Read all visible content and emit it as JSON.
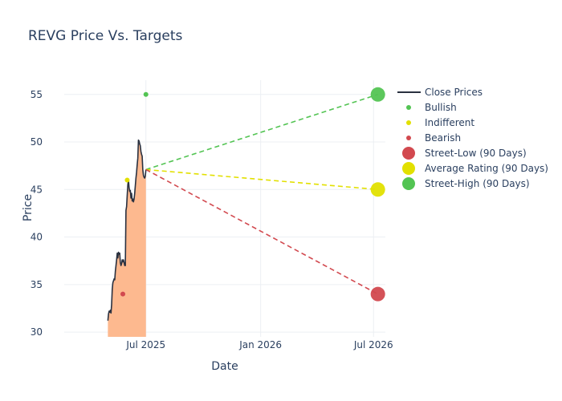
{
  "chart_data": {
    "type": "line",
    "title": "REVG Price Vs. Targets",
    "xlabel": "Date",
    "ylabel": "Price",
    "grid": true,
    "legend_position": "right",
    "xlim": [
      "2025-02-20",
      "2026-07-20"
    ],
    "ylim": [
      29.5,
      56.5
    ],
    "x_ticks": [
      {
        "date": "2025-07-01",
        "label": "Jul 2025"
      },
      {
        "date": "2026-01-01",
        "label": "Jan 2026"
      },
      {
        "date": "2026-07-01",
        "label": "Jul 2026"
      }
    ],
    "y_ticks": [
      30,
      35,
      40,
      45,
      50,
      55
    ],
    "colors": {
      "close": "#2a3140",
      "fill": "#fdb98f",
      "bullish": "#53c453",
      "indifferent": "#e2e000",
      "bearish": "#d2494f",
      "grid": "#eceff3",
      "text": "#2a3f5f"
    },
    "series": [
      {
        "name": "Close Prices",
        "kind": "line",
        "fill_to_zero": true,
        "points": [
          [
            "2025-05-01",
            31.2
          ],
          [
            "2025-05-02",
            31.9
          ],
          [
            "2025-05-03",
            32.2
          ],
          [
            "2025-05-04",
            32.1
          ],
          [
            "2025-05-05",
            32.3
          ],
          [
            "2025-05-06",
            32.0
          ],
          [
            "2025-05-07",
            32.9
          ],
          [
            "2025-05-08",
            34.5
          ],
          [
            "2025-05-09",
            35.2
          ],
          [
            "2025-05-10",
            35.4
          ],
          [
            "2025-05-11",
            35.6
          ],
          [
            "2025-05-12",
            35.5
          ],
          [
            "2025-05-13",
            36.4
          ],
          [
            "2025-05-14",
            37.0
          ],
          [
            "2025-05-15",
            37.6
          ],
          [
            "2025-05-16",
            38.3
          ],
          [
            "2025-05-17",
            37.8
          ],
          [
            "2025-05-18",
            38.4
          ],
          [
            "2025-05-19",
            38.2
          ],
          [
            "2025-05-20",
            38.3
          ],
          [
            "2025-05-21",
            37.3
          ],
          [
            "2025-05-22",
            37.0
          ],
          [
            "2025-05-23",
            37.2
          ],
          [
            "2025-05-24",
            37.6
          ],
          [
            "2025-05-25",
            37.4
          ],
          [
            "2025-05-26",
            37.6
          ],
          [
            "2025-05-27",
            37.3
          ],
          [
            "2025-05-28",
            37.0
          ],
          [
            "2025-05-29",
            37.0
          ],
          [
            "2025-05-30",
            42.8
          ],
          [
            "2025-05-31",
            43.2
          ],
          [
            "2025-06-01",
            44.4
          ],
          [
            "2025-06-02",
            45.5
          ],
          [
            "2025-06-03",
            46.0
          ],
          [
            "2025-06-04",
            45.2
          ],
          [
            "2025-06-05",
            44.8
          ],
          [
            "2025-06-06",
            44.9
          ],
          [
            "2025-06-07",
            44.1
          ],
          [
            "2025-06-08",
            44.6
          ],
          [
            "2025-06-09",
            43.8
          ],
          [
            "2025-06-10",
            44.0
          ],
          [
            "2025-06-11",
            43.7
          ],
          [
            "2025-06-12",
            44.0
          ],
          [
            "2025-06-13",
            44.6
          ],
          [
            "2025-06-14",
            45.4
          ],
          [
            "2025-06-15",
            46.2
          ],
          [
            "2025-06-16",
            46.8
          ],
          [
            "2025-06-17",
            47.6
          ],
          [
            "2025-06-18",
            48.3
          ],
          [
            "2025-06-19",
            50.2
          ],
          [
            "2025-06-20",
            50.1
          ],
          [
            "2025-06-21",
            49.8
          ],
          [
            "2025-06-22",
            49.6
          ],
          [
            "2025-06-23",
            49.0
          ],
          [
            "2025-06-24",
            48.7
          ],
          [
            "2025-06-25",
            48.5
          ],
          [
            "2025-06-26",
            47.1
          ],
          [
            "2025-06-27",
            46.5
          ],
          [
            "2025-06-28",
            46.3
          ],
          [
            "2025-06-29",
            46.2
          ],
          [
            "2025-06-30",
            46.4
          ],
          [
            "2025-07-01",
            47.1
          ]
        ]
      },
      {
        "name": "Bullish",
        "kind": "markers",
        "color": "#53c453",
        "points": [
          [
            "2025-07-01",
            55.0
          ]
        ]
      },
      {
        "name": "Indifferent",
        "kind": "markers",
        "color": "#e2e000",
        "points": [
          [
            "2025-06-01",
            46.0
          ]
        ]
      },
      {
        "name": "Bearish",
        "kind": "markers",
        "color": "#d2494f",
        "points": [
          [
            "2025-05-25",
            34.0
          ]
        ]
      },
      {
        "name": "Street-Low (90 Days)",
        "kind": "projection",
        "color": "#d2494f",
        "points": [
          [
            "2025-07-01",
            47.1
          ],
          [
            "2026-07-08",
            34.0
          ]
        ]
      },
      {
        "name": "Average Rating (90 Days)",
        "kind": "projection",
        "color": "#e2e000",
        "points": [
          [
            "2025-07-01",
            47.1
          ],
          [
            "2026-07-08",
            45.0
          ]
        ]
      },
      {
        "name": "Street-High (90 Days)",
        "kind": "projection",
        "color": "#53c453",
        "points": [
          [
            "2025-07-01",
            47.1
          ],
          [
            "2026-07-08",
            55.0
          ]
        ]
      }
    ],
    "legend": [
      {
        "label": "Close Prices",
        "symbol": "line",
        "color": "#2a3140"
      },
      {
        "label": "Bullish",
        "symbol": "dot",
        "color": "#53c453"
      },
      {
        "label": "Indifferent",
        "symbol": "dot",
        "color": "#e2e000"
      },
      {
        "label": "Bearish",
        "symbol": "dot",
        "color": "#d2494f"
      },
      {
        "label": "Street-Low (90 Days)",
        "symbol": "big-dot",
        "color": "#d2494f"
      },
      {
        "label": "Average Rating (90 Days)",
        "symbol": "big-dot",
        "color": "#e2e000"
      },
      {
        "label": "Street-High (90 Days)",
        "symbol": "big-dot",
        "color": "#53c453"
      }
    ]
  }
}
